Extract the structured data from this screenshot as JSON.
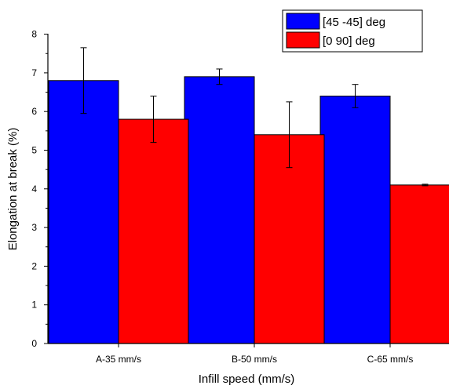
{
  "chart_data": {
    "type": "bar",
    "title": "",
    "xlabel": "Infill speed (mm/s)",
    "ylabel": "Elongation at break (%)",
    "categories": [
      "A-35 mm/s",
      "B-50 mm/s",
      "C-65 mm/s"
    ],
    "ylim": [
      0,
      8
    ],
    "yticks": [
      "0",
      "1",
      "2",
      "3",
      "4",
      "5",
      "6",
      "7",
      "8"
    ],
    "series": [
      {
        "name": "[45 -45] deg",
        "color": "#0000ff",
        "values": [
          6.8,
          6.9,
          6.4
        ],
        "errors": [
          0.85,
          0.2,
          0.3
        ]
      },
      {
        "name": "[0 90] deg",
        "color": "#ff0000",
        "values": [
          5.8,
          5.4,
          4.1
        ],
        "errors": [
          0.6,
          0.85,
          0.02
        ]
      }
    ],
    "legend_position": "top-right",
    "grid": false
  }
}
